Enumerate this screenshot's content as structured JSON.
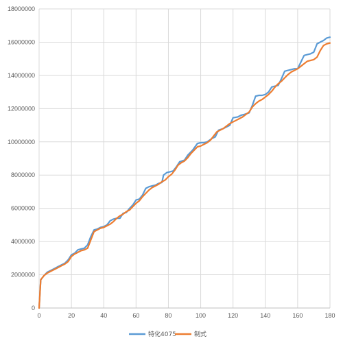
{
  "chart_data": {
    "type": "line",
    "title": "",
    "xlabel": "",
    "ylabel": "",
    "xlim": [
      0,
      180
    ],
    "ylim": [
      0,
      18000000
    ],
    "x_ticks": [
      0,
      20,
      40,
      60,
      80,
      100,
      120,
      140,
      160,
      180
    ],
    "y_ticks": [
      0,
      2000000,
      4000000,
      6000000,
      8000000,
      10000000,
      12000000,
      14000000,
      16000000,
      18000000
    ],
    "x_tick_labels": [
      "0",
      "20",
      "40",
      "60",
      "80",
      "100",
      "120",
      "140",
      "160",
      "180"
    ],
    "y_tick_labels": [
      "0",
      "2000000",
      "4000000",
      "6000000",
      "8000000",
      "10000000",
      "12000000",
      "14000000",
      "16000000",
      "18000000"
    ],
    "grid": "vertical and horizontal",
    "legend": "bottom",
    "series": [
      {
        "name": "特化4075",
        "color": "#5B9BD5",
        "points": [
          [
            0,
            0
          ],
          [
            1,
            1700000
          ],
          [
            3,
            1950000
          ],
          [
            5,
            2150000
          ],
          [
            8,
            2300000
          ],
          [
            10,
            2400000
          ],
          [
            12,
            2500000
          ],
          [
            14,
            2600000
          ],
          [
            16,
            2700000
          ],
          [
            18,
            2900000
          ],
          [
            20,
            3200000
          ],
          [
            22,
            3300000
          ],
          [
            24,
            3500000
          ],
          [
            26,
            3550000
          ],
          [
            28,
            3600000
          ],
          [
            30,
            3800000
          ],
          [
            32,
            4300000
          ],
          [
            34,
            4700000
          ],
          [
            36,
            4750000
          ],
          [
            38,
            4850000
          ],
          [
            40,
            4900000
          ],
          [
            42,
            5000000
          ],
          [
            44,
            5250000
          ],
          [
            46,
            5350000
          ],
          [
            48,
            5400000
          ],
          [
            50,
            5400000
          ],
          [
            52,
            5700000
          ],
          [
            54,
            5750000
          ],
          [
            56,
            6000000
          ],
          [
            58,
            6200000
          ],
          [
            60,
            6500000
          ],
          [
            62,
            6550000
          ],
          [
            64,
            6800000
          ],
          [
            66,
            7200000
          ],
          [
            68,
            7300000
          ],
          [
            70,
            7350000
          ],
          [
            72,
            7400000
          ],
          [
            74,
            7500000
          ],
          [
            76,
            7550000
          ],
          [
            77,
            8000000
          ],
          [
            79,
            8150000
          ],
          [
            81,
            8200000
          ],
          [
            83,
            8250000
          ],
          [
            85,
            8500000
          ],
          [
            87,
            8800000
          ],
          [
            90,
            8900000
          ],
          [
            92,
            9200000
          ],
          [
            95,
            9500000
          ],
          [
            98,
            9900000
          ],
          [
            100,
            9950000
          ],
          [
            102,
            9950000
          ],
          [
            104,
            10000000
          ],
          [
            107,
            10200000
          ],
          [
            109,
            10300000
          ],
          [
            111,
            10700000
          ],
          [
            114,
            10800000
          ],
          [
            116,
            10900000
          ],
          [
            118,
            11000000
          ],
          [
            120,
            11450000
          ],
          [
            123,
            11500000
          ],
          [
            125,
            11600000
          ],
          [
            127,
            11650000
          ],
          [
            130,
            11750000
          ],
          [
            132,
            12200000
          ],
          [
            134,
            12750000
          ],
          [
            136,
            12800000
          ],
          [
            138,
            12800000
          ],
          [
            140,
            12850000
          ],
          [
            142,
            13000000
          ],
          [
            144,
            13300000
          ],
          [
            146,
            13350000
          ],
          [
            148,
            13400000
          ],
          [
            150,
            13800000
          ],
          [
            152,
            14250000
          ],
          [
            154,
            14300000
          ],
          [
            156,
            14350000
          ],
          [
            158,
            14400000
          ],
          [
            160,
            14400000
          ],
          [
            162,
            14800000
          ],
          [
            164,
            15200000
          ],
          [
            166,
            15250000
          ],
          [
            168,
            15300000
          ],
          [
            170,
            15400000
          ],
          [
            172,
            15900000
          ],
          [
            174,
            16000000
          ],
          [
            176,
            16100000
          ],
          [
            178,
            16250000
          ],
          [
            180,
            16300000
          ]
        ]
      },
      {
        "name": "制式",
        "color": "#ED7D31",
        "points": [
          [
            0,
            0
          ],
          [
            1,
            1700000
          ],
          [
            3,
            1950000
          ],
          [
            5,
            2100000
          ],
          [
            8,
            2250000
          ],
          [
            10,
            2350000
          ],
          [
            12,
            2450000
          ],
          [
            14,
            2550000
          ],
          [
            16,
            2650000
          ],
          [
            18,
            2800000
          ],
          [
            20,
            3100000
          ],
          [
            22,
            3250000
          ],
          [
            24,
            3350000
          ],
          [
            26,
            3450000
          ],
          [
            28,
            3500000
          ],
          [
            30,
            3600000
          ],
          [
            32,
            4100000
          ],
          [
            34,
            4600000
          ],
          [
            36,
            4700000
          ],
          [
            38,
            4800000
          ],
          [
            40,
            4850000
          ],
          [
            42,
            4950000
          ],
          [
            44,
            5050000
          ],
          [
            46,
            5200000
          ],
          [
            48,
            5400000
          ],
          [
            50,
            5550000
          ],
          [
            52,
            5650000
          ],
          [
            54,
            5800000
          ],
          [
            56,
            5900000
          ],
          [
            58,
            6100000
          ],
          [
            60,
            6300000
          ],
          [
            62,
            6450000
          ],
          [
            64,
            6700000
          ],
          [
            66,
            6900000
          ],
          [
            68,
            7100000
          ],
          [
            70,
            7250000
          ],
          [
            72,
            7350000
          ],
          [
            74,
            7450000
          ],
          [
            76,
            7600000
          ],
          [
            78,
            7700000
          ],
          [
            80,
            7900000
          ],
          [
            82,
            8050000
          ],
          [
            84,
            8300000
          ],
          [
            86,
            8600000
          ],
          [
            88,
            8750000
          ],
          [
            90,
            8850000
          ],
          [
            92,
            9050000
          ],
          [
            94,
            9300000
          ],
          [
            96,
            9500000
          ],
          [
            98,
            9700000
          ],
          [
            100,
            9750000
          ],
          [
            102,
            9850000
          ],
          [
            104,
            9950000
          ],
          [
            106,
            10100000
          ],
          [
            108,
            10350000
          ],
          [
            110,
            10600000
          ],
          [
            112,
            10700000
          ],
          [
            114,
            10800000
          ],
          [
            116,
            10950000
          ],
          [
            118,
            11100000
          ],
          [
            120,
            11200000
          ],
          [
            122,
            11300000
          ],
          [
            124,
            11400000
          ],
          [
            126,
            11500000
          ],
          [
            128,
            11650000
          ],
          [
            130,
            11800000
          ],
          [
            132,
            12100000
          ],
          [
            134,
            12300000
          ],
          [
            136,
            12450000
          ],
          [
            138,
            12550000
          ],
          [
            140,
            12700000
          ],
          [
            142,
            12850000
          ],
          [
            144,
            13050000
          ],
          [
            146,
            13300000
          ],
          [
            148,
            13500000
          ],
          [
            150,
            13650000
          ],
          [
            152,
            13850000
          ],
          [
            154,
            14050000
          ],
          [
            156,
            14200000
          ],
          [
            158,
            14300000
          ],
          [
            160,
            14400000
          ],
          [
            162,
            14550000
          ],
          [
            164,
            14700000
          ],
          [
            166,
            14850000
          ],
          [
            168,
            14900000
          ],
          [
            170,
            14950000
          ],
          [
            172,
            15100000
          ],
          [
            174,
            15500000
          ],
          [
            176,
            15800000
          ],
          [
            178,
            15900000
          ],
          [
            180,
            15950000
          ]
        ]
      }
    ]
  }
}
